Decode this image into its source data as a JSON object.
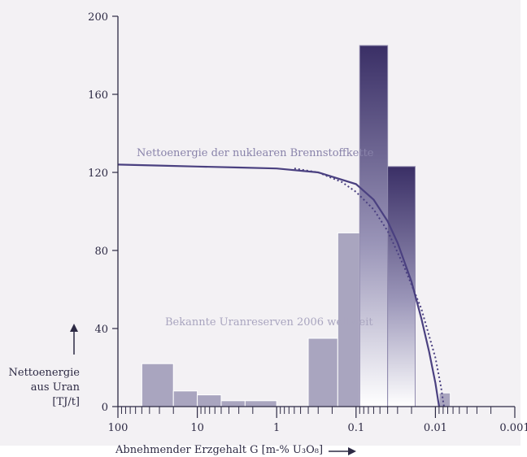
{
  "chart_data": {
    "type": "bar",
    "x_scale": "log-reversed",
    "xlim": [
      100,
      0.001
    ],
    "ylim": [
      0,
      200
    ],
    "y_ticks": [
      "0",
      "40",
      "80",
      "120",
      "160",
      "200"
    ],
    "x_ticks": [
      "100",
      "10",
      "1",
      "0.1",
      "0.01",
      "0.001"
    ],
    "ylabel_lines": [
      "Nettoenergie",
      "aus Uran",
      "[TJ/t]"
    ],
    "xlabel": "Abnehmender Erzgehalt G [m-% U₃O₈]",
    "bars_label": "Bekannte Uranreserven 2006 weltweit",
    "curve_label": "Nettoenergie der nuklearen Brennstoffkette",
    "bars": [
      {
        "x_from": 50,
        "x_to": 20,
        "value": 22
      },
      {
        "x_from": 20,
        "x_to": 10,
        "value": 8
      },
      {
        "x_from": 10,
        "x_to": 5,
        "value": 6
      },
      {
        "x_from": 5,
        "x_to": 2.5,
        "value": 3
      },
      {
        "x_from": 2.5,
        "x_to": 1,
        "value": 3
      },
      {
        "x_from": 0.4,
        "x_to": 0.17,
        "value": 35
      },
      {
        "x_from": 0.17,
        "x_to": 0.09,
        "value": 89
      },
      {
        "x_from": 0.09,
        "x_to": 0.04,
        "value": 185
      },
      {
        "x_from": 0.04,
        "x_to": 0.018,
        "value": 123
      },
      {
        "x_from": 0.009,
        "x_to": 0.0065,
        "value": 7
      }
    ],
    "series": [
      {
        "style": "solid",
        "points": [
          [
            100,
            124
          ],
          [
            30,
            123.5
          ],
          [
            10,
            123
          ],
          [
            3,
            122.5
          ],
          [
            1,
            122
          ],
          [
            0.3,
            120
          ],
          [
            0.1,
            114
          ],
          [
            0.06,
            106
          ],
          [
            0.04,
            95
          ],
          [
            0.03,
            84
          ],
          [
            0.02,
            64
          ],
          [
            0.015,
            45
          ],
          [
            0.012,
            28
          ],
          [
            0.01,
            12
          ],
          [
            0.009,
            0
          ]
        ]
      },
      {
        "style": "dotted",
        "points": [
          [
            0.6,
            122
          ],
          [
            0.3,
            120
          ],
          [
            0.15,
            115
          ],
          [
            0.1,
            110
          ],
          [
            0.06,
            101
          ],
          [
            0.04,
            90
          ],
          [
            0.025,
            72
          ],
          [
            0.015,
            50
          ],
          [
            0.01,
            25
          ],
          [
            0.0085,
            10
          ],
          [
            0.0078,
            0
          ]
        ]
      }
    ],
    "colors": {
      "bar_dark": "#3a2f66",
      "bar_light": "#a9a5bf",
      "curve": "#4a4080",
      "axis": "#2d2a44",
      "label": "#8983aa"
    }
  }
}
